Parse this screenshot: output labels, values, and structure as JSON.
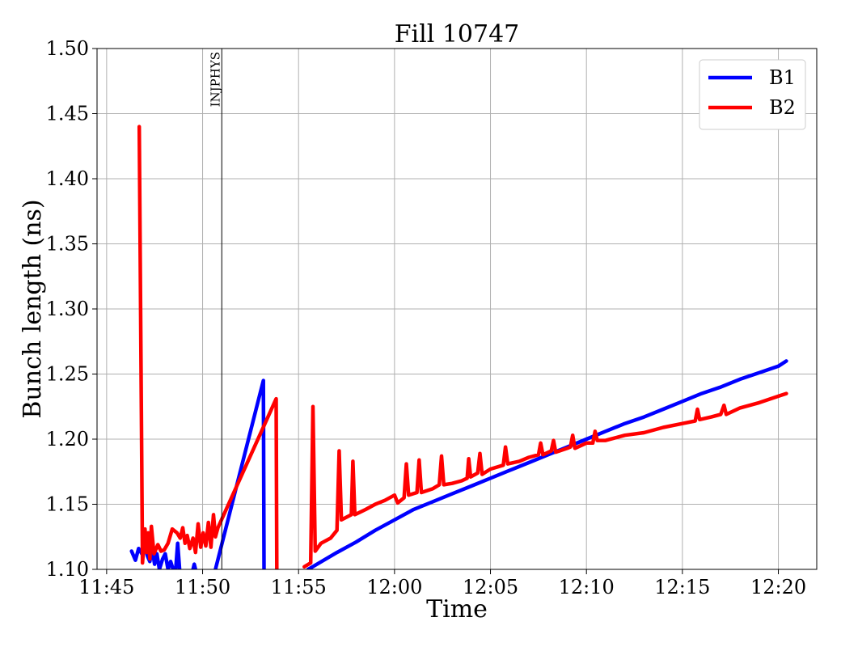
{
  "chart_data": {
    "type": "line",
    "title": "Fill 10747",
    "xlabel": "Time",
    "ylabel": "Bunch length (ns)",
    "xlim": [
      "11:44:30",
      "12:22:00"
    ],
    "ylim": [
      1.1,
      1.5
    ],
    "x_ticks": [
      "11:45",
      "11:50",
      "11:55",
      "12:00",
      "12:05",
      "12:10",
      "12:15",
      "12:20"
    ],
    "y_ticks": [
      "1.10",
      "1.15",
      "1.20",
      "1.25",
      "1.30",
      "1.35",
      "1.40",
      "1.45",
      "1.50"
    ],
    "grid": true,
    "legend_position": "top-right",
    "markers": [
      {
        "label": "INJPHYS",
        "x": "11:51:00"
      }
    ],
    "series": [
      {
        "name": "B1",
        "color": "#0000ff",
        "points": [
          [
            "11:46:18",
            1.114
          ],
          [
            "11:46:30",
            1.107
          ],
          [
            "11:46:40",
            1.116
          ],
          [
            "11:46:50",
            1.112
          ],
          [
            "11:47:00",
            1.117
          ],
          [
            "11:47:08",
            1.11
          ],
          [
            "11:47:15",
            1.106
          ],
          [
            "11:47:22",
            1.116
          ],
          [
            "11:47:30",
            1.104
          ],
          [
            "11:47:37",
            1.112
          ],
          [
            "11:47:45",
            1.1
          ],
          [
            "11:47:55",
            1.108
          ],
          [
            "11:48:03",
            1.112
          ],
          [
            "11:48:12",
            1.1
          ],
          [
            "11:48:20",
            1.106
          ],
          [
            "11:48:28",
            1.1
          ],
          [
            null,
            null
          ],
          [
            "11:48:36",
            1.1
          ],
          [
            "11:48:42",
            1.12
          ],
          [
            "11:48:48",
            1.1
          ],
          [
            null,
            null
          ],
          [
            "11:49:30",
            1.1
          ],
          [
            "11:49:34",
            1.104
          ],
          [
            "11:49:38",
            1.1
          ],
          [
            null,
            null
          ],
          [
            "11:50:40",
            1.1
          ],
          [
            "11:53:10",
            1.245
          ],
          [
            "11:53:12",
            1.1
          ],
          [
            null,
            null
          ],
          [
            "11:55:30",
            1.1
          ],
          [
            "11:57:00",
            1.113
          ],
          [
            "11:58:00",
            1.121
          ],
          [
            "11:59:00",
            1.13
          ],
          [
            "12:00:00",
            1.138
          ],
          [
            "12:01:00",
            1.146
          ],
          [
            "12:02:00",
            1.152
          ],
          [
            "12:03:00",
            1.158
          ],
          [
            "12:04:00",
            1.164
          ],
          [
            "12:05:00",
            1.17
          ],
          [
            "12:06:00",
            1.176
          ],
          [
            "12:07:00",
            1.182
          ],
          [
            "12:08:00",
            1.188
          ],
          [
            "12:09:00",
            1.194
          ],
          [
            "12:10:00",
            1.2
          ],
          [
            "12:11:00",
            1.206
          ],
          [
            "12:12:00",
            1.212
          ],
          [
            "12:13:00",
            1.217
          ],
          [
            "12:14:00",
            1.223
          ],
          [
            "12:15:00",
            1.229
          ],
          [
            "12:16:00",
            1.235
          ],
          [
            "12:17:00",
            1.24
          ],
          [
            "12:18:00",
            1.246
          ],
          [
            "12:19:00",
            1.251
          ],
          [
            "12:20:00",
            1.256
          ],
          [
            "12:20:25",
            1.26
          ]
        ]
      },
      {
        "name": "B2",
        "color": "#ff0000",
        "points": [
          [
            "11:46:42",
            1.44
          ],
          [
            "11:46:52",
            1.105
          ],
          [
            "11:47:00",
            1.131
          ],
          [
            "11:47:05",
            1.113
          ],
          [
            "11:47:10",
            1.128
          ],
          [
            "11:47:15",
            1.108
          ],
          [
            "11:47:20",
            1.133
          ],
          [
            "11:47:28",
            1.112
          ],
          [
            "11:47:40",
            1.119
          ],
          [
            "11:47:50",
            1.114
          ],
          [
            "11:48:00",
            1.115
          ],
          [
            "11:48:12",
            1.12
          ],
          [
            "11:48:25",
            1.131
          ],
          [
            "11:48:40",
            1.128
          ],
          [
            "11:48:50",
            1.124
          ],
          [
            "11:48:58",
            1.132
          ],
          [
            "11:49:05",
            1.12
          ],
          [
            "11:49:12",
            1.126
          ],
          [
            "11:49:20",
            1.116
          ],
          [
            "11:49:30",
            1.124
          ],
          [
            "11:49:38",
            1.113
          ],
          [
            "11:49:46",
            1.135
          ],
          [
            "11:49:54",
            1.117
          ],
          [
            "11:50:02",
            1.128
          ],
          [
            "11:50:10",
            1.118
          ],
          [
            "11:50:18",
            1.136
          ],
          [
            "11:50:26",
            1.117
          ],
          [
            "11:50:34",
            1.142
          ],
          [
            "11:50:40",
            1.125
          ],
          [
            "11:50:48",
            1.132
          ],
          [
            "11:53:50",
            1.231
          ],
          [
            "11:53:52",
            1.1
          ],
          [
            null,
            null
          ],
          [
            "11:55:18",
            1.102
          ],
          [
            "11:55:38",
            1.105
          ],
          [
            "11:55:45",
            1.225
          ],
          [
            "11:55:52",
            1.114
          ],
          [
            "11:56:10",
            1.12
          ],
          [
            "11:56:40",
            1.124
          ],
          [
            "11:57:00",
            1.13
          ],
          [
            "11:57:07",
            1.191
          ],
          [
            "11:57:14",
            1.138
          ],
          [
            "11:57:45",
            1.142
          ],
          [
            "11:57:50",
            1.183
          ],
          [
            "11:57:56",
            1.142
          ],
          [
            "11:58:30",
            1.146
          ],
          [
            "11:59:00",
            1.15
          ],
          [
            "11:59:30",
            1.153
          ],
          [
            "12:00:00",
            1.157
          ],
          [
            "12:00:10",
            1.151
          ],
          [
            "12:00:30",
            1.155
          ],
          [
            "12:00:37",
            1.181
          ],
          [
            "12:00:44",
            1.157
          ],
          [
            "12:01:10",
            1.159
          ],
          [
            "12:01:17",
            1.184
          ],
          [
            "12:01:24",
            1.159
          ],
          [
            "12:02:00",
            1.162
          ],
          [
            "12:02:20",
            1.165
          ],
          [
            "12:02:27",
            1.187
          ],
          [
            "12:02:34",
            1.165
          ],
          [
            "12:03:00",
            1.166
          ],
          [
            "12:03:30",
            1.168
          ],
          [
            "12:03:47",
            1.17
          ],
          [
            "12:03:52",
            1.185
          ],
          [
            "12:03:58",
            1.171
          ],
          [
            "12:04:20",
            1.174
          ],
          [
            "12:04:27",
            1.189
          ],
          [
            "12:04:34",
            1.173
          ],
          [
            "12:05:00",
            1.177
          ],
          [
            "12:05:40",
            1.18
          ],
          [
            "12:05:47",
            1.194
          ],
          [
            "12:05:54",
            1.181
          ],
          [
            "12:06:30",
            1.183
          ],
          [
            "12:07:00",
            1.186
          ],
          [
            "12:07:30",
            1.188
          ],
          [
            "12:07:37",
            1.197
          ],
          [
            "12:07:44",
            1.188
          ],
          [
            "12:08:10",
            1.191
          ],
          [
            "12:08:17",
            1.199
          ],
          [
            "12:08:24",
            1.19
          ],
          [
            "12:09:00",
            1.193
          ],
          [
            "12:09:10",
            1.194
          ],
          [
            "12:09:17",
            1.203
          ],
          [
            "12:09:24",
            1.193
          ],
          [
            "12:10:00",
            1.197
          ],
          [
            "12:10:20",
            1.197
          ],
          [
            "12:10:27",
            1.206
          ],
          [
            "12:10:34",
            1.199
          ],
          [
            "12:11:00",
            1.199
          ],
          [
            "12:12:00",
            1.203
          ],
          [
            "12:13:00",
            1.205
          ],
          [
            "12:14:00",
            1.209
          ],
          [
            "12:15:00",
            1.212
          ],
          [
            "12:15:40",
            1.214
          ],
          [
            "12:15:47",
            1.223
          ],
          [
            "12:15:54",
            1.215
          ],
          [
            "12:16:30",
            1.217
          ],
          [
            "12:17:00",
            1.219
          ],
          [
            "12:17:10",
            1.226
          ],
          [
            "12:17:17",
            1.219
          ],
          [
            "12:18:00",
            1.224
          ],
          [
            "12:19:00",
            1.228
          ],
          [
            "12:20:00",
            1.233
          ],
          [
            "12:20:25",
            1.235
          ]
        ]
      }
    ]
  }
}
